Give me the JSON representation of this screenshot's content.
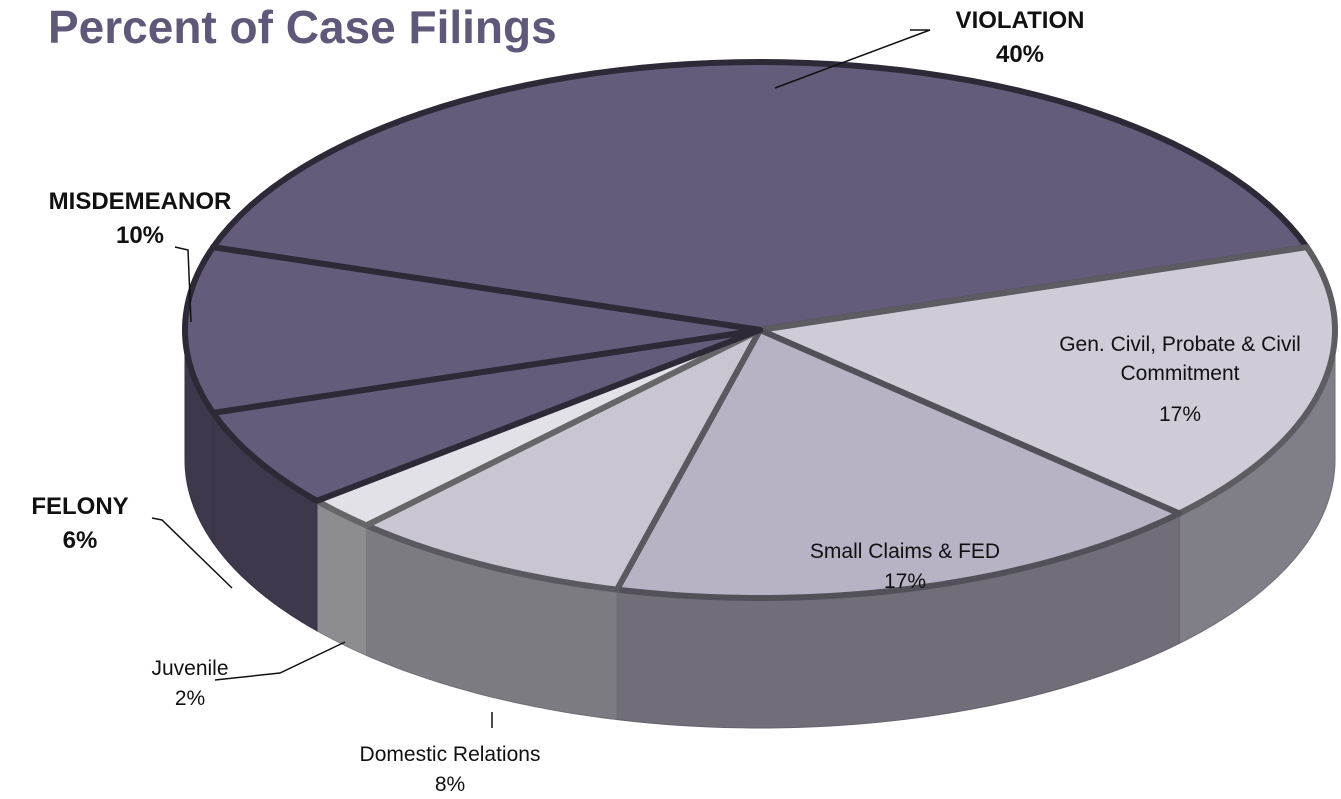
{
  "chart_data": {
    "type": "pie",
    "title": "Percent of Case Filings",
    "categories": [
      "VIOLATION",
      "Gen. Civil, Probate & Civil Commitment",
      "Small Claims & FED",
      "Domestic Relations",
      "Juvenile",
      "FELONY",
      "MISDEMEANOR"
    ],
    "values": [
      40,
      17,
      17,
      8,
      2,
      6,
      10
    ],
    "value_labels": [
      "40%",
      "17%",
      "17%",
      "8%",
      "2%",
      "6%",
      "10%"
    ],
    "colors": [
      "#655b7b",
      "#cfccd8",
      "#b7b2c4",
      "#c9c6d2",
      "#e3e1e8",
      "#655b7b",
      "#655b7b"
    ]
  }
}
